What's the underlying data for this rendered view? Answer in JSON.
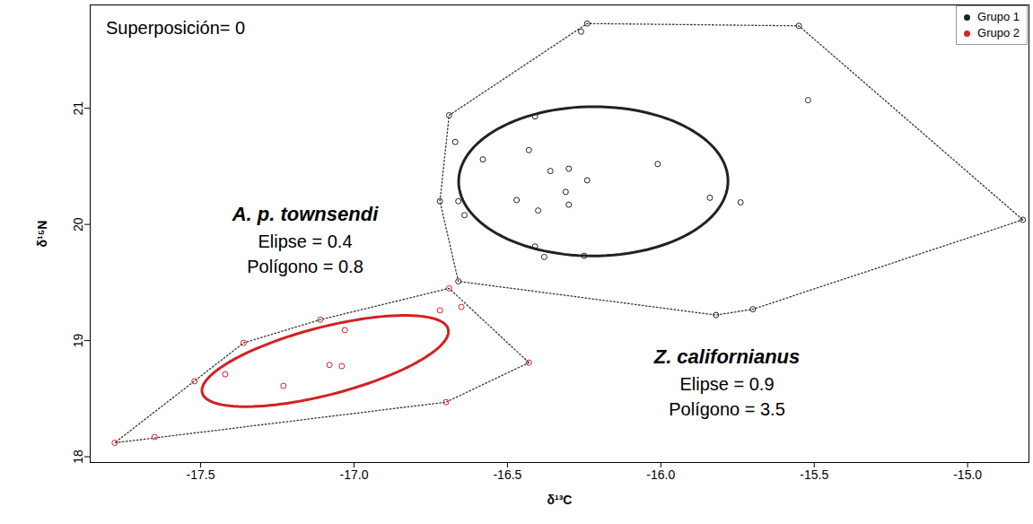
{
  "chart_data": {
    "type": "scatter",
    "x_label": "δ¹³C",
    "y_label": "δ¹⁵N",
    "annotation": "Superposición= 0",
    "xlim": [
      -17.86,
      -14.8
    ],
    "ylim": [
      17.95,
      21.89
    ],
    "xticks": [
      {
        "value": -17.5,
        "label": "-17.5"
      },
      {
        "value": -17,
        "label": "-17.0"
      },
      {
        "value": -16.5,
        "label": "-16.5"
      },
      {
        "value": -16,
        "label": "-16.0"
      },
      {
        "value": -15.5,
        "label": "-15.5"
      },
      {
        "value": -15,
        "label": "-15.0"
      }
    ],
    "yticks": [
      18,
      19,
      20,
      21
    ],
    "legend": "top-right",
    "series": [
      {
        "name": "Grupo 1",
        "color": "#222222",
        "species": "Z. californianus",
        "notes": [
          "Elipse = 0.9",
          "Polígono = 3.5"
        ],
        "x": [
          -16.24,
          -16.26,
          -15.55,
          -15.52,
          -16.69,
          -16.41,
          -16.67,
          -16.58,
          -16.43,
          -16.36,
          -16.3,
          -16.24,
          -16.31,
          -16.3,
          -16.47,
          -16.4,
          -16.01,
          -15.84,
          -15.74,
          -16.72,
          -16.66,
          -16.64,
          -16.41,
          -16.38,
          -16.25,
          -16.66,
          -15.82,
          -15.7,
          -14.82
        ],
        "y": [
          21.73,
          21.66,
          21.71,
          21.07,
          20.94,
          20.93,
          20.71,
          20.56,
          20.64,
          20.46,
          20.48,
          20.38,
          20.28,
          20.17,
          20.21,
          20.12,
          20.52,
          20.23,
          20.19,
          20.2,
          20.2,
          20.08,
          19.81,
          19.72,
          19.73,
          19.51,
          19.22,
          19.27,
          20.04
        ]
      },
      {
        "name": "Grupo 2",
        "color": "#d42020",
        "species": "A. p. townsendi",
        "notes": [
          "Elipse = 0.4",
          "Polígono = 0.8"
        ],
        "x": [
          -17.78,
          -17.65,
          -17.52,
          -17.42,
          -17.36,
          -17.23,
          -17.11,
          -17.08,
          -17.04,
          -17.03,
          -16.72,
          -16.69,
          -16.65,
          -16.7,
          -16.43
        ],
        "y": [
          18.12,
          18.17,
          18.65,
          18.71,
          18.98,
          18.61,
          19.18,
          18.79,
          18.78,
          19.09,
          19.26,
          19.45,
          19.29,
          18.47,
          18.81
        ]
      }
    ]
  }
}
